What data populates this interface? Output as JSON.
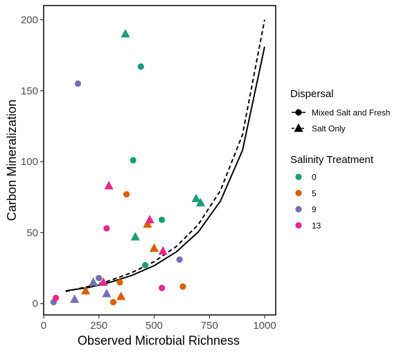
{
  "chart_data": {
    "type": "scatter",
    "title": "",
    "xlabel": "Observed Microbial Richness",
    "ylabel": "Carbon Mineralization",
    "xlim": [
      0,
      1050
    ],
    "ylim": [
      -8,
      210
    ],
    "x_ticks": [
      0,
      250,
      500,
      750,
      1000
    ],
    "y_ticks": [
      0,
      50,
      100,
      150,
      200
    ],
    "grid": false,
    "legend_position": "right",
    "shape_legend": {
      "title": "Dispersal",
      "entries": [
        {
          "label": "Mixed Salt and Fresh",
          "shape": "circle",
          "line": "solid"
        },
        {
          "label": "Salt Only",
          "shape": "triangle",
          "line": "dashed"
        }
      ]
    },
    "color_legend": {
      "title": "Salinity Treatment",
      "entries": [
        {
          "label": "0",
          "color": "#1b9e77"
        },
        {
          "label": "5",
          "color": "#d95f02"
        },
        {
          "label": "9",
          "color": "#7570b3"
        },
        {
          "label": "13",
          "color": "#e7298a"
        }
      ]
    },
    "points": [
      {
        "x": 440,
        "y": 167,
        "salinity": "0",
        "dispersal": "Mixed Salt and Fresh"
      },
      {
        "x": 405,
        "y": 101,
        "salinity": "0",
        "dispersal": "Mixed Salt and Fresh"
      },
      {
        "x": 535,
        "y": 59,
        "salinity": "0",
        "dispersal": "Mixed Salt and Fresh"
      },
      {
        "x": 460,
        "y": 27,
        "salinity": "0",
        "dispersal": "Mixed Salt and Fresh"
      },
      {
        "x": 375,
        "y": 77,
        "salinity": "5",
        "dispersal": "Mixed Salt and Fresh"
      },
      {
        "x": 345,
        "y": 15,
        "salinity": "5",
        "dispersal": "Mixed Salt and Fresh"
      },
      {
        "x": 315,
        "y": 1,
        "salinity": "5",
        "dispersal": "Mixed Salt and Fresh"
      },
      {
        "x": 630,
        "y": 12,
        "salinity": "5",
        "dispersal": "Mixed Salt and Fresh"
      },
      {
        "x": 155,
        "y": 155,
        "salinity": "9",
        "dispersal": "Mixed Salt and Fresh"
      },
      {
        "x": 250,
        "y": 18,
        "salinity": "9",
        "dispersal": "Mixed Salt and Fresh"
      },
      {
        "x": 615,
        "y": 31,
        "salinity": "9",
        "dispersal": "Mixed Salt and Fresh"
      },
      {
        "x": 45,
        "y": 1,
        "salinity": "9",
        "dispersal": "Mixed Salt and Fresh"
      },
      {
        "x": 285,
        "y": 53,
        "salinity": "13",
        "dispersal": "Mixed Salt and Fresh"
      },
      {
        "x": 535,
        "y": 11,
        "salinity": "13",
        "dispersal": "Mixed Salt and Fresh"
      },
      {
        "x": 55,
        "y": 4,
        "salinity": "13",
        "dispersal": "Mixed Salt and Fresh"
      },
      {
        "x": 370,
        "y": 190,
        "salinity": "0",
        "dispersal": "Salt Only"
      },
      {
        "x": 415,
        "y": 47,
        "salinity": "0",
        "dispersal": "Salt Only"
      },
      {
        "x": 690,
        "y": 74,
        "salinity": "0",
        "dispersal": "Salt Only"
      },
      {
        "x": 710,
        "y": 71,
        "salinity": "0",
        "dispersal": "Salt Only"
      },
      {
        "x": 470,
        "y": 56,
        "salinity": "5",
        "dispersal": "Salt Only"
      },
      {
        "x": 500,
        "y": 39,
        "salinity": "5",
        "dispersal": "Salt Only"
      },
      {
        "x": 190,
        "y": 9,
        "salinity": "5",
        "dispersal": "Salt Only"
      },
      {
        "x": 350,
        "y": 5,
        "salinity": "5",
        "dispersal": "Salt Only"
      },
      {
        "x": 140,
        "y": 3,
        "salinity": "9",
        "dispersal": "Salt Only"
      },
      {
        "x": 225,
        "y": 15,
        "salinity": "9",
        "dispersal": "Salt Only"
      },
      {
        "x": 285,
        "y": 7,
        "salinity": "9",
        "dispersal": "Salt Only"
      },
      {
        "x": 295,
        "y": 83,
        "salinity": "13",
        "dispersal": "Salt Only"
      },
      {
        "x": 480,
        "y": 59,
        "salinity": "13",
        "dispersal": "Salt Only"
      },
      {
        "x": 540,
        "y": 37,
        "salinity": "13",
        "dispersal": "Salt Only"
      },
      {
        "x": 270,
        "y": 15,
        "salinity": "13",
        "dispersal": "Salt Only"
      }
    ],
    "fit_lines": [
      {
        "dispersal": "Mixed Salt and Fresh",
        "line": "solid",
        "x": [
          100,
          200,
          300,
          400,
          500,
          600,
          700,
          800,
          900,
          1000
        ],
        "y": [
          9,
          11.2,
          14.9,
          19.9,
          26.7,
          36.4,
          50.5,
          72.2,
          108,
          181
        ]
      },
      {
        "dispersal": "Salt Only",
        "line": "dashed",
        "x": [
          100,
          200,
          300,
          400,
          500,
          600,
          700,
          800,
          900,
          1000
        ],
        "y": [
          8.5,
          12,
          16.2,
          21.9,
          29.5,
          40.2,
          55.7,
          79.6,
          119,
          200
        ]
      }
    ]
  }
}
